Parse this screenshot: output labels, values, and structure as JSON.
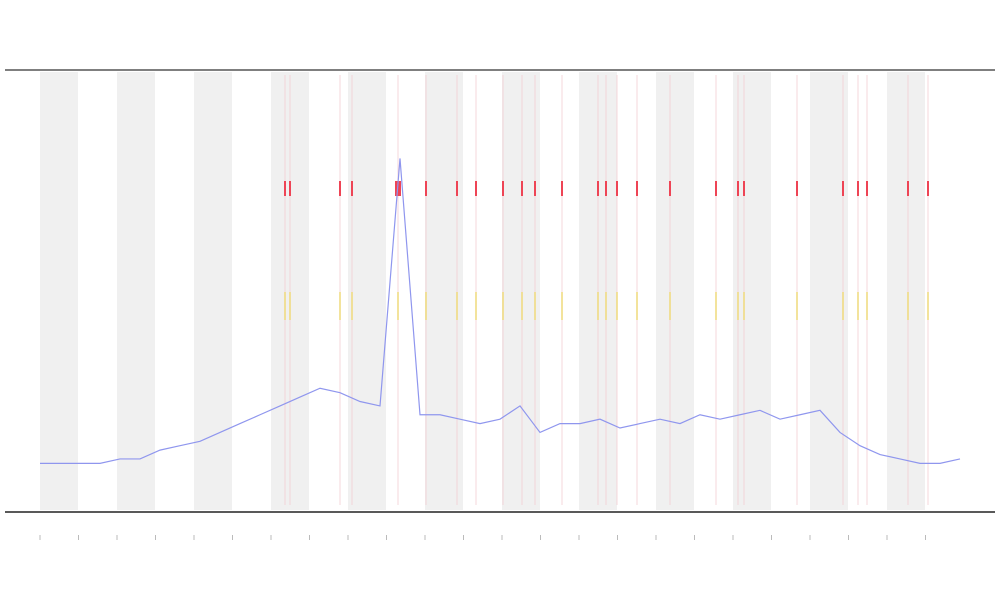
{
  "chart_data": {
    "type": "line",
    "values": [
      11,
      11,
      11,
      11,
      12,
      12,
      14,
      15,
      16,
      18,
      20,
      22,
      24,
      26,
      28,
      27,
      25,
      24,
      80,
      22,
      22,
      21,
      20,
      21,
      24,
      18,
      20,
      20,
      21,
      19,
      20,
      21,
      20,
      22,
      21,
      22,
      23,
      21,
      22,
      23,
      18,
      15,
      13,
      12,
      11,
      11,
      12
    ],
    "color": "#8f96ee",
    "ylim": [
      0,
      100
    ]
  }
}
